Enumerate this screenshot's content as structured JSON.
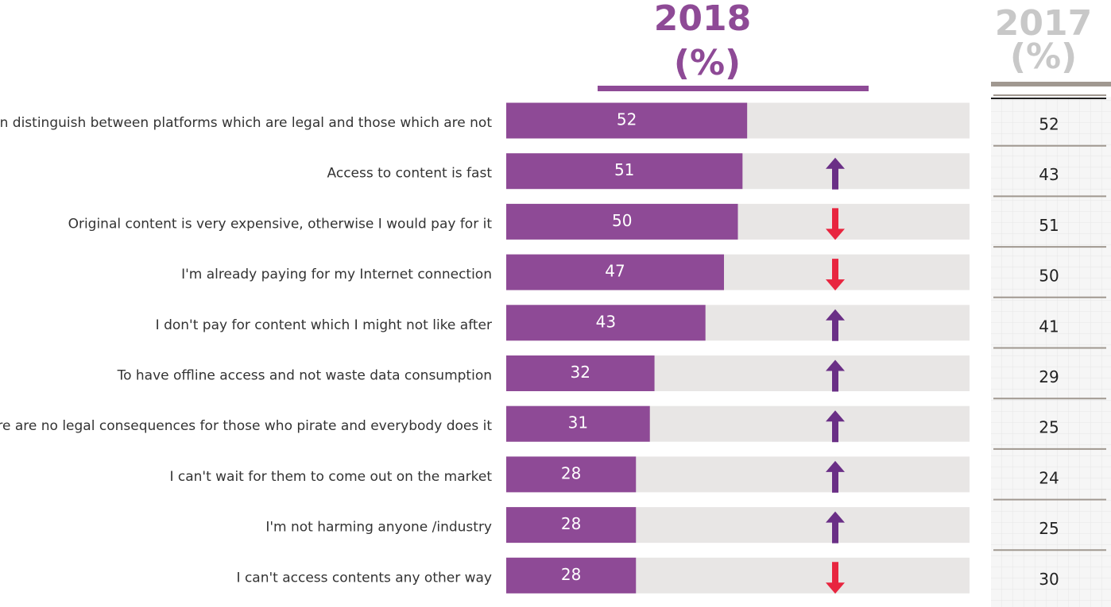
{
  "chart_data": {
    "type": "bar",
    "unit": "(%)",
    "categories": [
      "I can distinguish between platforms which are legal and those which are not",
      "Access to content is fast",
      "Original content is very expensive, otherwise I would pay for it",
      "I'm already paying for my Internet connection",
      "I don't pay for content which I might not like after",
      "To have offline access and not waste data consumption",
      "There are no legal consequences for those who pirate and everybody does it",
      "I can't wait for them to come out on the market",
      "I'm not harming anyone /industry",
      "I can't access contents any other way"
    ],
    "series": [
      {
        "name": "2018",
        "color": "#8e4a96",
        "values": [
          52,
          51,
          50,
          47,
          43,
          32,
          31,
          28,
          28,
          28
        ]
      }
    ],
    "comparison": {
      "name": "2017",
      "color": "#c8c8c8",
      "values": [
        52,
        43,
        51,
        50,
        41,
        29,
        25,
        24,
        25,
        30
      ]
    },
    "xlim": [
      0,
      100
    ]
  }
}
